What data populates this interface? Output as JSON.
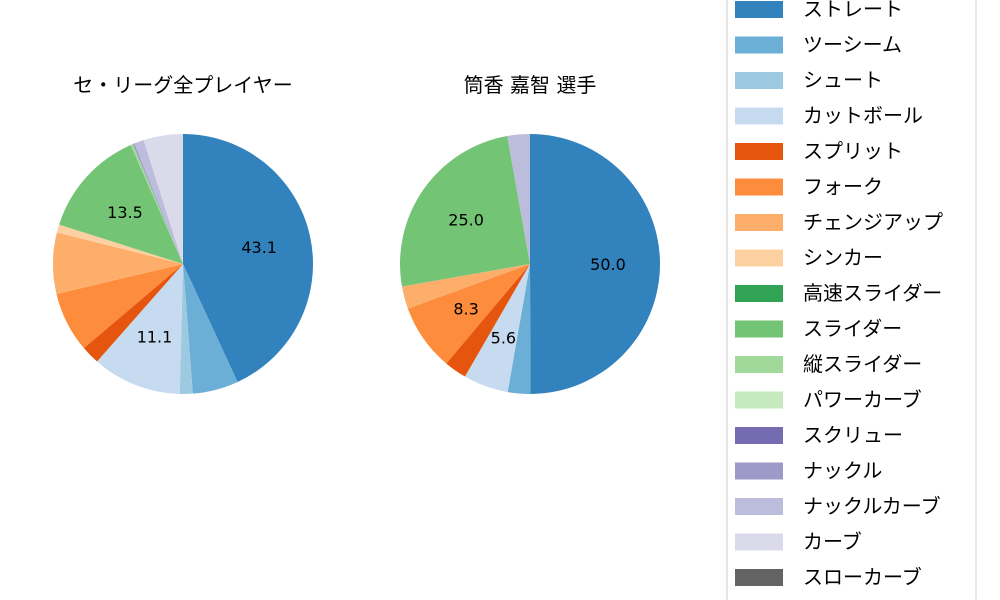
{
  "chart_data": [
    {
      "type": "pie",
      "title": "セ・リーグ全プレイヤー",
      "slices": [
        {
          "label": "ストレート",
          "value": 43.1,
          "show_label": true
        },
        {
          "label": "ツーシーム",
          "value": 5.7
        },
        {
          "label": "シュート",
          "value": 1.6
        },
        {
          "label": "カットボール",
          "value": 11.1,
          "show_label": true
        },
        {
          "label": "スプリット",
          "value": 2.3
        },
        {
          "label": "フォーク",
          "value": 7.5
        },
        {
          "label": "チェンジアップ",
          "value": 7.6
        },
        {
          "label": "シンカー",
          "value": 1.0
        },
        {
          "label": "スライダー",
          "value": 13.5,
          "show_label": true
        },
        {
          "label": "縦スライダー",
          "value": 0.3
        },
        {
          "label": "ナックル",
          "value": 0.2
        },
        {
          "label": "ナックルカーブ",
          "value": 1.2
        },
        {
          "label": "カーブ",
          "value": 4.9
        }
      ]
    },
    {
      "type": "pie",
      "title": "筒香 嘉智  選手",
      "slices": [
        {
          "label": "ストレート",
          "value": 50.0,
          "show_label": true
        },
        {
          "label": "ツーシーム",
          "value": 2.8
        },
        {
          "label": "カットボール",
          "value": 5.6,
          "show_label": true
        },
        {
          "label": "スプリット",
          "value": 2.8
        },
        {
          "label": "フォーク",
          "value": 8.3,
          "show_label": true
        },
        {
          "label": "チェンジアップ",
          "value": 2.8
        },
        {
          "label": "スライダー",
          "value": 25.0,
          "show_label": true
        },
        {
          "label": "ナックルカーブ",
          "value": 2.8
        }
      ]
    }
  ],
  "legend": {
    "placement": "right",
    "items": [
      {
        "label": "ストレート",
        "color": "#3182bd"
      },
      {
        "label": "ツーシーム",
        "color": "#6baed6"
      },
      {
        "label": "シュート",
        "color": "#9ecae1"
      },
      {
        "label": "カットボール",
        "color": "#c6dbef"
      },
      {
        "label": "スプリット",
        "color": "#e6550d"
      },
      {
        "label": "フォーク",
        "color": "#fd8d3c"
      },
      {
        "label": "チェンジアップ",
        "color": "#fdae6b"
      },
      {
        "label": "シンカー",
        "color": "#fdd0a2"
      },
      {
        "label": "高速スライダー",
        "color": "#31a354"
      },
      {
        "label": "スライダー",
        "color": "#74c476"
      },
      {
        "label": "縦スライダー",
        "color": "#a1d99b"
      },
      {
        "label": "パワーカーブ",
        "color": "#c7e9c0"
      },
      {
        "label": "スクリュー",
        "color": "#756bb1"
      },
      {
        "label": "ナックル",
        "color": "#9e9ac8"
      },
      {
        "label": "ナックルカーブ",
        "color": "#bcbddc"
      },
      {
        "label": "カーブ",
        "color": "#dadaeb"
      },
      {
        "label": "スローカーブ",
        "color": "#636363"
      }
    ]
  }
}
